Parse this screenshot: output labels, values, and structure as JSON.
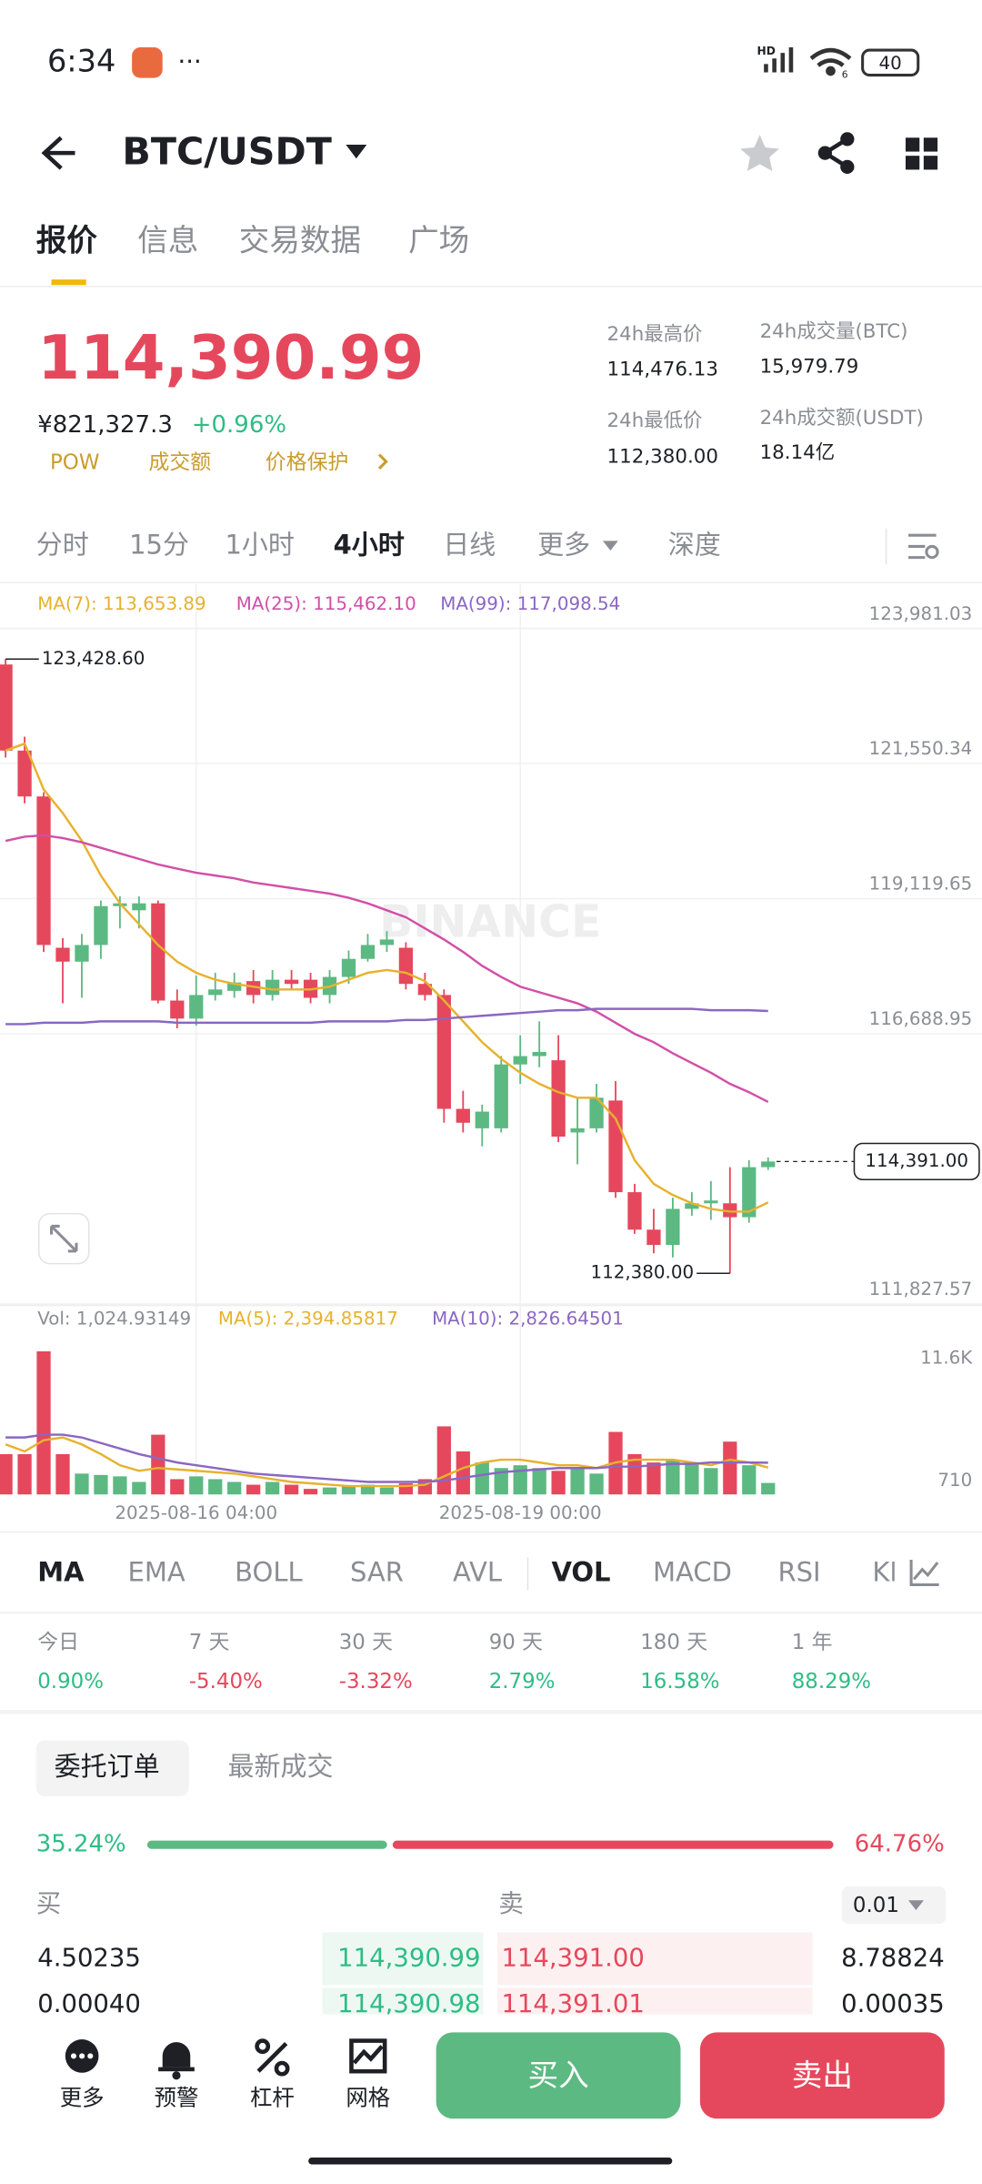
{
  "status_bar": {
    "time": "6:34",
    "more": "···",
    "network": "HD",
    "wifi": "6",
    "battery": "40"
  },
  "header": {
    "pair": "BTC/USDT"
  },
  "tabs": [
    "报价",
    "信息",
    "交易数据",
    "广场"
  ],
  "ticker": {
    "price": "114,390.99",
    "cny": "¥821,327.3",
    "change": "+0.96%",
    "tags": [
      "POW",
      "成交额",
      "价格保护"
    ],
    "stats": [
      {
        "label": "24h最高价",
        "value": "114,476.13"
      },
      {
        "label": "24h成交量(BTC)",
        "value": "15,979.79"
      },
      {
        "label": "24h最低价",
        "value": "112,380.00"
      },
      {
        "label": "24h成交额(USDT)",
        "value": "18.14亿"
      }
    ]
  },
  "intervals": [
    "分时",
    "15分",
    "1小时",
    "4小时",
    "日线",
    "更多",
    "深度"
  ],
  "chart_data": {
    "type": "candlestick",
    "categories": [
      null,
      null,
      null,
      null,
      null,
      null,
      null,
      null,
      null,
      null,
      "2025-08-16 04:00",
      null,
      null,
      null,
      null,
      null,
      null,
      null,
      null,
      null,
      null,
      null,
      null,
      null,
      null,
      null,
      null,
      "2025-08-19 00:00",
      null,
      null,
      null,
      null,
      null,
      null,
      null,
      null,
      null,
      null,
      null,
      null,
      null
    ],
    "ylim": [
      111827.57,
      123981.03
    ],
    "yticks": [
      {
        "value": 111827.57,
        "label": "111,827.57"
      },
      {
        "value": 116688.95,
        "label": "116,688.95"
      },
      {
        "value": 119119.65,
        "label": "119,119.65"
      },
      {
        "value": 121550.34,
        "label": "121,550.34"
      },
      {
        "value": 123981.03,
        "label": "123,981.03"
      }
    ],
    "grid": true,
    "up_color": "#5cb982",
    "down_color": "#e5485c",
    "open": [
      123332,
      121783,
      120958,
      118236,
      117986,
      118286,
      118985,
      118910,
      119035,
      117286,
      116962,
      117386,
      117461,
      117636,
      117386,
      117661,
      117661,
      117386,
      117711,
      118036,
      118286,
      118236,
      117586,
      117386,
      115338,
      114988,
      114988,
      116137,
      116287,
      116212,
      114913,
      114988,
      115488,
      113839,
      113165,
      112890,
      113539,
      113639,
      113639,
      113389,
      114289
    ],
    "high": [
      123428.6,
      122033,
      121033,
      118410,
      118485,
      119085,
      119160,
      119160,
      119085,
      117486,
      117736,
      117786,
      117786,
      117836,
      117836,
      117836,
      117786,
      117836,
      118186,
      118485,
      118535,
      118335,
      117786,
      117486,
      115663,
      115413,
      116287,
      116662,
      116912,
      116662,
      115538,
      115788,
      115838,
      113989,
      113539,
      113739,
      113839,
      114039,
      114289,
      114414,
      114464
    ],
    "low": [
      121658,
      120834,
      118161,
      117236,
      117336,
      118036,
      118585,
      118585,
      117236,
      116787,
      116837,
      117286,
      117336,
      117236,
      117286,
      117486,
      117236,
      117236,
      117586,
      117986,
      118161,
      117486,
      117286,
      115088,
      114913,
      114663,
      114913,
      115788,
      116087,
      114738,
      114339,
      114913,
      113739,
      113090,
      112740,
      112665,
      113414,
      113340,
      112380,
      113290,
      114239
    ],
    "close": [
      121783,
      120958,
      118286,
      117986,
      118286,
      118985,
      119035,
      119035,
      117286,
      116962,
      117386,
      117486,
      117611,
      117386,
      117661,
      117586,
      117336,
      117711,
      118036,
      118286,
      118385,
      117586,
      117386,
      115338,
      115088,
      115288,
      116137,
      116287,
      116362,
      114838,
      114988,
      115538,
      113839,
      113165,
      112890,
      113539,
      113639,
      113689,
      113389,
      114289,
      114390.99
    ],
    "series": [
      {
        "name": "MA(7): 113,653.89",
        "color": "#e6b22e",
        "values": [
          121783,
          121908,
          121083,
          120659,
          120159,
          119535,
          119035,
          118660,
          118286,
          117986,
          117786,
          117661,
          117586,
          117536,
          117486,
          117486,
          117486,
          117536,
          117661,
          117786,
          117836,
          117786,
          117636,
          117286,
          116912,
          116537,
          116237,
          115988,
          115788,
          115638,
          115538,
          115538,
          115163,
          114414,
          113989,
          113789,
          113639,
          113539,
          113489,
          113489,
          113653.89
        ]
      },
      {
        "name": "MA(25): 115,462.10",
        "color": "#d24fa8",
        "values": [
          120159,
          120234,
          120259,
          120209,
          120134,
          120034,
          119934,
          119834,
          119734,
          119659,
          119585,
          119535,
          119485,
          119410,
          119360,
          119310,
          119260,
          119210,
          119135,
          119035,
          118910,
          118785,
          118585,
          118385,
          118161,
          117911,
          117711,
          117536,
          117436,
          117336,
          117236,
          117086,
          116887,
          116687,
          116537,
          116337,
          116162,
          115988,
          115788,
          115638,
          115462.1
        ]
      },
      {
        "name": "MA(99): 117,098.54",
        "color": "#8a67c2",
        "values": [
          116862,
          116862,
          116887,
          116887,
          116887,
          116912,
          116912,
          116912,
          116912,
          116887,
          116887,
          116887,
          116887,
          116887,
          116887,
          116887,
          116887,
          116912,
          116912,
          116912,
          116912,
          116937,
          116937,
          116962,
          116987,
          117012,
          117037,
          117062,
          117087,
          117112,
          117112,
          117137,
          117137,
          117137,
          117137,
          117137,
          117137,
          117112,
          117112,
          117112,
          117098.54
        ]
      }
    ],
    "high_marker": {
      "value": 123428.6,
      "label": "123,428.60"
    },
    "low_marker": {
      "value": 112380,
      "label": "112,380.00"
    },
    "last_price": {
      "value": 114391,
      "label": "114,391.00"
    },
    "watermark": "BINANCE",
    "volume": {
      "name": "Vol: 1,024.93149",
      "ylim": [
        0,
        13000
      ],
      "yticks": [
        710,
        {
          "value": 11600,
          "label": "11.6K"
        }
      ],
      "values": [
        3589,
        3589,
        12746,
        3589,
        1856,
        1733,
        1609,
        1114,
        5321,
        1361,
        1609,
        1361,
        1114,
        866,
        1114,
        866,
        495,
        619,
        743,
        866,
        619,
        990,
        1361,
        6064,
        3836,
        2846,
        2351,
        2599,
        2351,
        2104,
        2351,
        1856,
        5569,
        3589,
        2846,
        3094,
        2846,
        2351,
        4703,
        2599,
        1024.93149
      ],
      "series": [
        {
          "name": "MA(5): 2,394.85817",
          "color": "#e6b22e",
          "values": [
            4455,
            3836,
            4826,
            5074,
            4455,
            3589,
            2599,
            2104,
            2351,
            2228,
            2104,
            1980,
            1856,
            1609,
            1361,
            1114,
            990,
            866,
            743,
            743,
            743,
            743,
            866,
            1609,
            2351,
            2846,
            3094,
            3094,
            2846,
            2599,
            2599,
            2351,
            2846,
            3094,
            3094,
            3094,
            2846,
            2599,
            3094,
            2846,
            2394.85817
          ]
        },
        {
          "name": "MA(10): 2,826.64501",
          "color": "#8a67c2",
          "values": [
            5074,
            5074,
            5321,
            5321,
            5074,
            4579,
            4084,
            3589,
            3218,
            2846,
            2599,
            2351,
            2104,
            1856,
            1733,
            1609,
            1485,
            1361,
            1238,
            1114,
            1114,
            1114,
            1114,
            1238,
            1485,
            1733,
            1980,
            2104,
            2228,
            2351,
            2351,
            2351,
            2475,
            2475,
            2599,
            2723,
            2723,
            2846,
            2846,
            2846,
            2826.64501
          ]
        }
      ]
    }
  },
  "indicators": [
    "MA",
    "EMA",
    "BOLL",
    "SAR",
    "AVL",
    "VOL",
    "MACD",
    "RSI",
    "KDJ"
  ],
  "performance": [
    {
      "period": "今日",
      "change": "0.90%"
    },
    {
      "period": "7 天",
      "change": "-5.40%"
    },
    {
      "period": "30 天",
      "change": "-3.32%"
    },
    {
      "period": "90 天",
      "change": "2.79%"
    },
    {
      "period": "180 天",
      "change": "16.58%"
    },
    {
      "period": "1 年",
      "change": "88.29%"
    }
  ],
  "order_book": {
    "tabs": [
      "委托订单",
      "最新成交"
    ],
    "buy_ratio": {
      "value": 35.24,
      "label": "35.24%"
    },
    "sell_ratio": {
      "value": 64.76,
      "label": "64.76%"
    },
    "buy_header": "买",
    "sell_header": "卖",
    "precision": "0.01",
    "rows": [
      [
        "4.50235",
        "114,390.99",
        "114,391.00",
        "8.78824"
      ],
      [
        "0.00040",
        "114,390.98",
        "114,391.01",
        "0.00035"
      ]
    ]
  },
  "bottom_bar": {
    "actions": [
      "更多",
      "预警",
      "杠杆",
      "网格"
    ],
    "buy": "买入",
    "sell": "卖出"
  }
}
